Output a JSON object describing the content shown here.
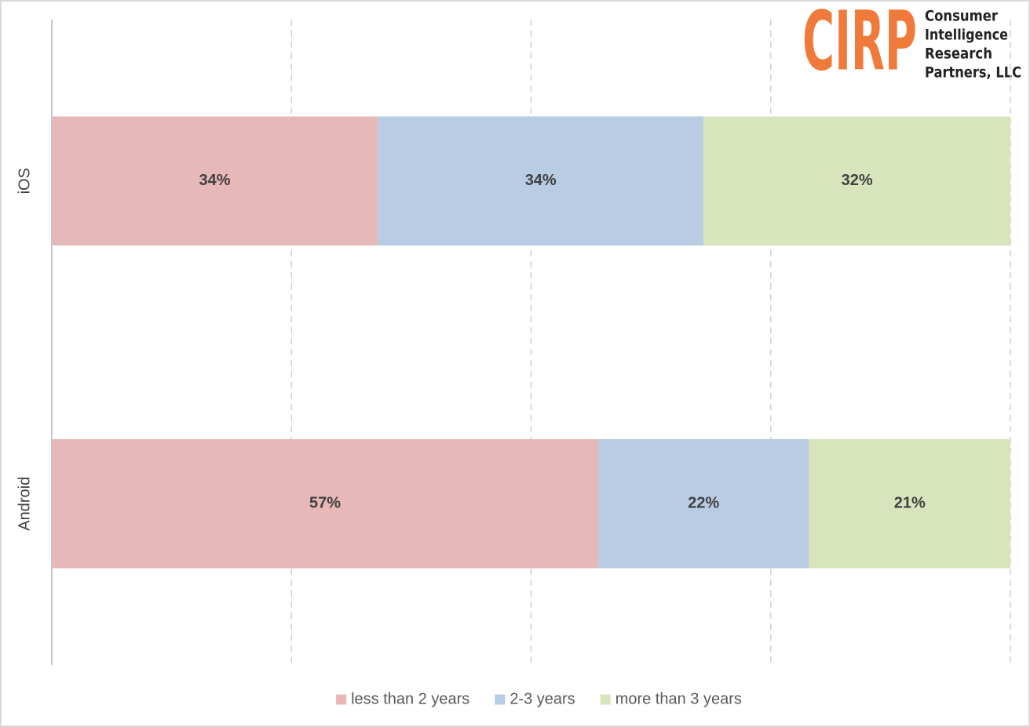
{
  "chart_data": {
    "type": "stacked_bar",
    "orientation": "horizontal",
    "categories": [
      "iOS",
      "Android"
    ],
    "series": [
      {
        "name": "less than 2 years",
        "color": "#e6b8b7",
        "values": [
          34,
          57
        ],
        "value_labels": [
          "34%",
          "57%"
        ]
      },
      {
        "name": "2-3 years",
        "color": "#b8cce4",
        "values": [
          34,
          22
        ],
        "value_labels": [
          "34%",
          "22%"
        ]
      },
      {
        "name": "more than 3 years",
        "color": "#d8e4bc",
        "values": [
          32,
          21
        ],
        "value_labels": [
          "32%",
          "21%"
        ]
      }
    ],
    "xlim": [
      0,
      100
    ],
    "xticks": [
      0,
      25,
      50,
      75,
      100
    ],
    "grid": true,
    "legend": "bottom",
    "logo": {
      "mark": "CIRP",
      "lines": [
        "Consumer",
        "Intelligence",
        "Research",
        "Partners, LLC"
      ]
    }
  }
}
